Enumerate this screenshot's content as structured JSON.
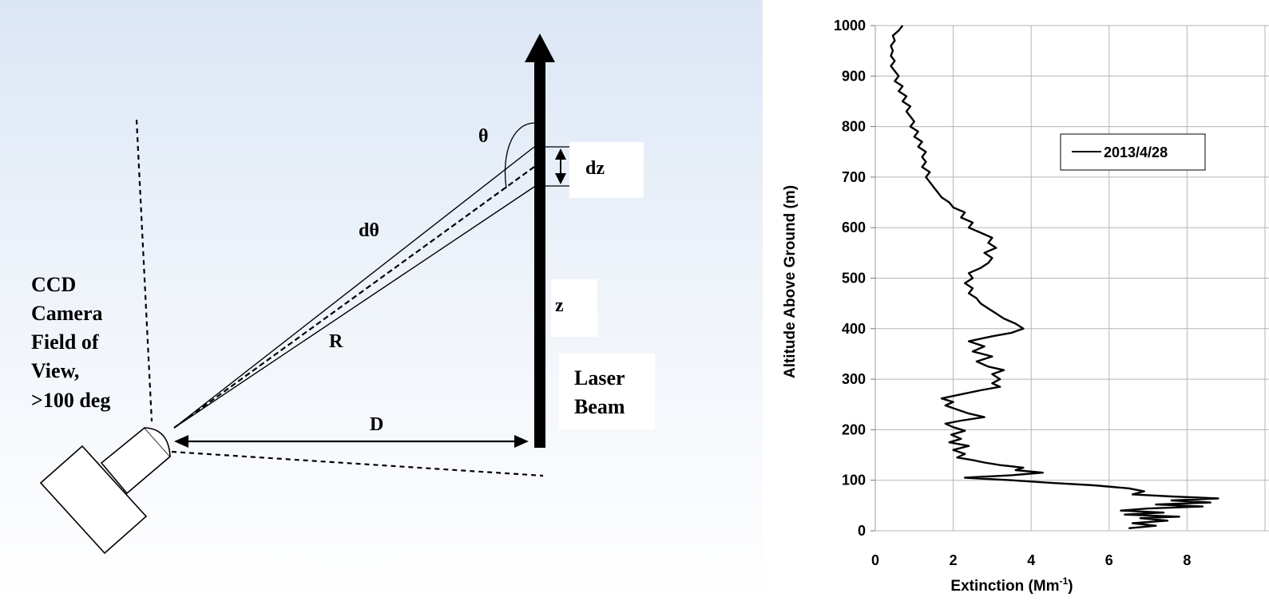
{
  "diagram": {
    "labels": {
      "theta": "θ",
      "dz": "dz",
      "dtheta": "dθ",
      "r": "R",
      "z": "z",
      "d": "D",
      "camera": [
        "CCD",
        "Camera",
        "Field of",
        "View,",
        ">100 deg"
      ],
      "laser": [
        "Laser",
        "Beam"
      ]
    },
    "colors": {
      "ink": "#000000",
      "label_box": "#ffffff"
    }
  },
  "chart_data": {
    "type": "line",
    "title": "",
    "xlabel": "Extinction (Mm",
    "xlabel_sup": "-1",
    "xlabel_suffix": ")",
    "ylabel": "Altitude Above Ground (m)",
    "xlim": [
      0,
      10
    ],
    "ylim": [
      0,
      1000
    ],
    "xticks": [
      "0",
      "2",
      "4",
      "6",
      "8"
    ],
    "yticks": [
      "0",
      "100",
      "200",
      "300",
      "400",
      "500",
      "600",
      "700",
      "800",
      "900",
      "1000"
    ],
    "grid": true,
    "legend_position": "top-right",
    "series": [
      {
        "name": "2013/4/28",
        "color": "#000000",
        "points": [
          [
            6.5,
            5
          ],
          [
            7.2,
            10
          ],
          [
            6.6,
            15
          ],
          [
            7.5,
            20
          ],
          [
            6.8,
            25
          ],
          [
            7.8,
            28
          ],
          [
            6.4,
            32
          ],
          [
            7.4,
            36
          ],
          [
            6.3,
            40
          ],
          [
            7.0,
            44
          ],
          [
            8.4,
            48
          ],
          [
            7.2,
            52
          ],
          [
            8.6,
            56
          ],
          [
            7.6,
            60
          ],
          [
            8.8,
            64
          ],
          [
            7.6,
            68
          ],
          [
            6.6,
            72
          ],
          [
            6.9,
            78
          ],
          [
            6.5,
            84
          ],
          [
            5.6,
            90
          ],
          [
            4.5,
            95
          ],
          [
            3.5,
            100
          ],
          [
            2.3,
            105
          ],
          [
            3.5,
            110
          ],
          [
            4.3,
            115
          ],
          [
            3.6,
            120
          ],
          [
            3.8,
            125
          ],
          [
            3.2,
            130
          ],
          [
            2.8,
            135
          ],
          [
            2.5,
            140
          ],
          [
            2.1,
            145
          ],
          [
            2.3,
            152
          ],
          [
            2.0,
            160
          ],
          [
            2.4,
            168
          ],
          [
            1.9,
            175
          ],
          [
            2.2,
            182
          ],
          [
            1.95,
            190
          ],
          [
            2.3,
            198
          ],
          [
            2.0,
            205
          ],
          [
            1.8,
            212
          ],
          [
            2.2,
            218
          ],
          [
            2.8,
            225
          ],
          [
            2.4,
            232
          ],
          [
            2.1,
            240
          ],
          [
            1.8,
            248
          ],
          [
            2.0,
            255
          ],
          [
            1.7,
            262
          ],
          [
            2.2,
            270
          ],
          [
            2.7,
            278
          ],
          [
            3.2,
            285
          ],
          [
            3.0,
            292
          ],
          [
            3.2,
            300
          ],
          [
            3.0,
            310
          ],
          [
            3.3,
            318
          ],
          [
            2.9,
            325
          ],
          [
            2.6,
            335
          ],
          [
            3.0,
            345
          ],
          [
            2.5,
            355
          ],
          [
            2.8,
            365
          ],
          [
            2.4,
            375
          ],
          [
            3.0,
            385
          ],
          [
            3.5,
            392
          ],
          [
            3.8,
            400
          ],
          [
            3.6,
            410
          ],
          [
            3.3,
            420
          ],
          [
            3.1,
            430
          ],
          [
            2.9,
            440
          ],
          [
            2.7,
            450
          ],
          [
            2.6,
            460
          ],
          [
            2.4,
            470
          ],
          [
            2.5,
            480
          ],
          [
            2.3,
            490
          ],
          [
            2.5,
            500
          ],
          [
            2.4,
            510
          ],
          [
            2.7,
            520
          ],
          [
            2.9,
            530
          ],
          [
            3.0,
            540
          ],
          [
            2.8,
            550
          ],
          [
            3.1,
            560
          ],
          [
            2.9,
            570
          ],
          [
            3.0,
            580
          ],
          [
            2.7,
            590
          ],
          [
            2.4,
            600
          ],
          [
            2.5,
            610
          ],
          [
            2.2,
            620
          ],
          [
            2.3,
            630
          ],
          [
            2.0,
            640
          ],
          [
            1.9,
            650
          ],
          [
            1.7,
            660
          ],
          [
            1.6,
            670
          ],
          [
            1.5,
            680
          ],
          [
            1.4,
            690
          ],
          [
            1.3,
            700
          ],
          [
            1.4,
            710
          ],
          [
            1.2,
            720
          ],
          [
            1.3,
            730
          ],
          [
            1.2,
            740
          ],
          [
            1.3,
            750
          ],
          [
            1.1,
            760
          ],
          [
            1.2,
            770
          ],
          [
            1.0,
            780
          ],
          [
            1.1,
            790
          ],
          [
            0.9,
            800
          ],
          [
            1.0,
            810
          ],
          [
            0.9,
            820
          ],
          [
            0.8,
            830
          ],
          [
            0.9,
            840
          ],
          [
            0.7,
            850
          ],
          [
            0.8,
            860
          ],
          [
            0.6,
            870
          ],
          [
            0.7,
            880
          ],
          [
            0.5,
            890
          ],
          [
            0.6,
            900
          ],
          [
            0.5,
            910
          ],
          [
            0.4,
            920
          ],
          [
            0.5,
            930
          ],
          [
            0.4,
            940
          ],
          [
            0.45,
            950
          ],
          [
            0.4,
            960
          ],
          [
            0.5,
            970
          ],
          [
            0.45,
            980
          ],
          [
            0.6,
            990
          ],
          [
            0.7,
            1000
          ]
        ]
      }
    ]
  }
}
